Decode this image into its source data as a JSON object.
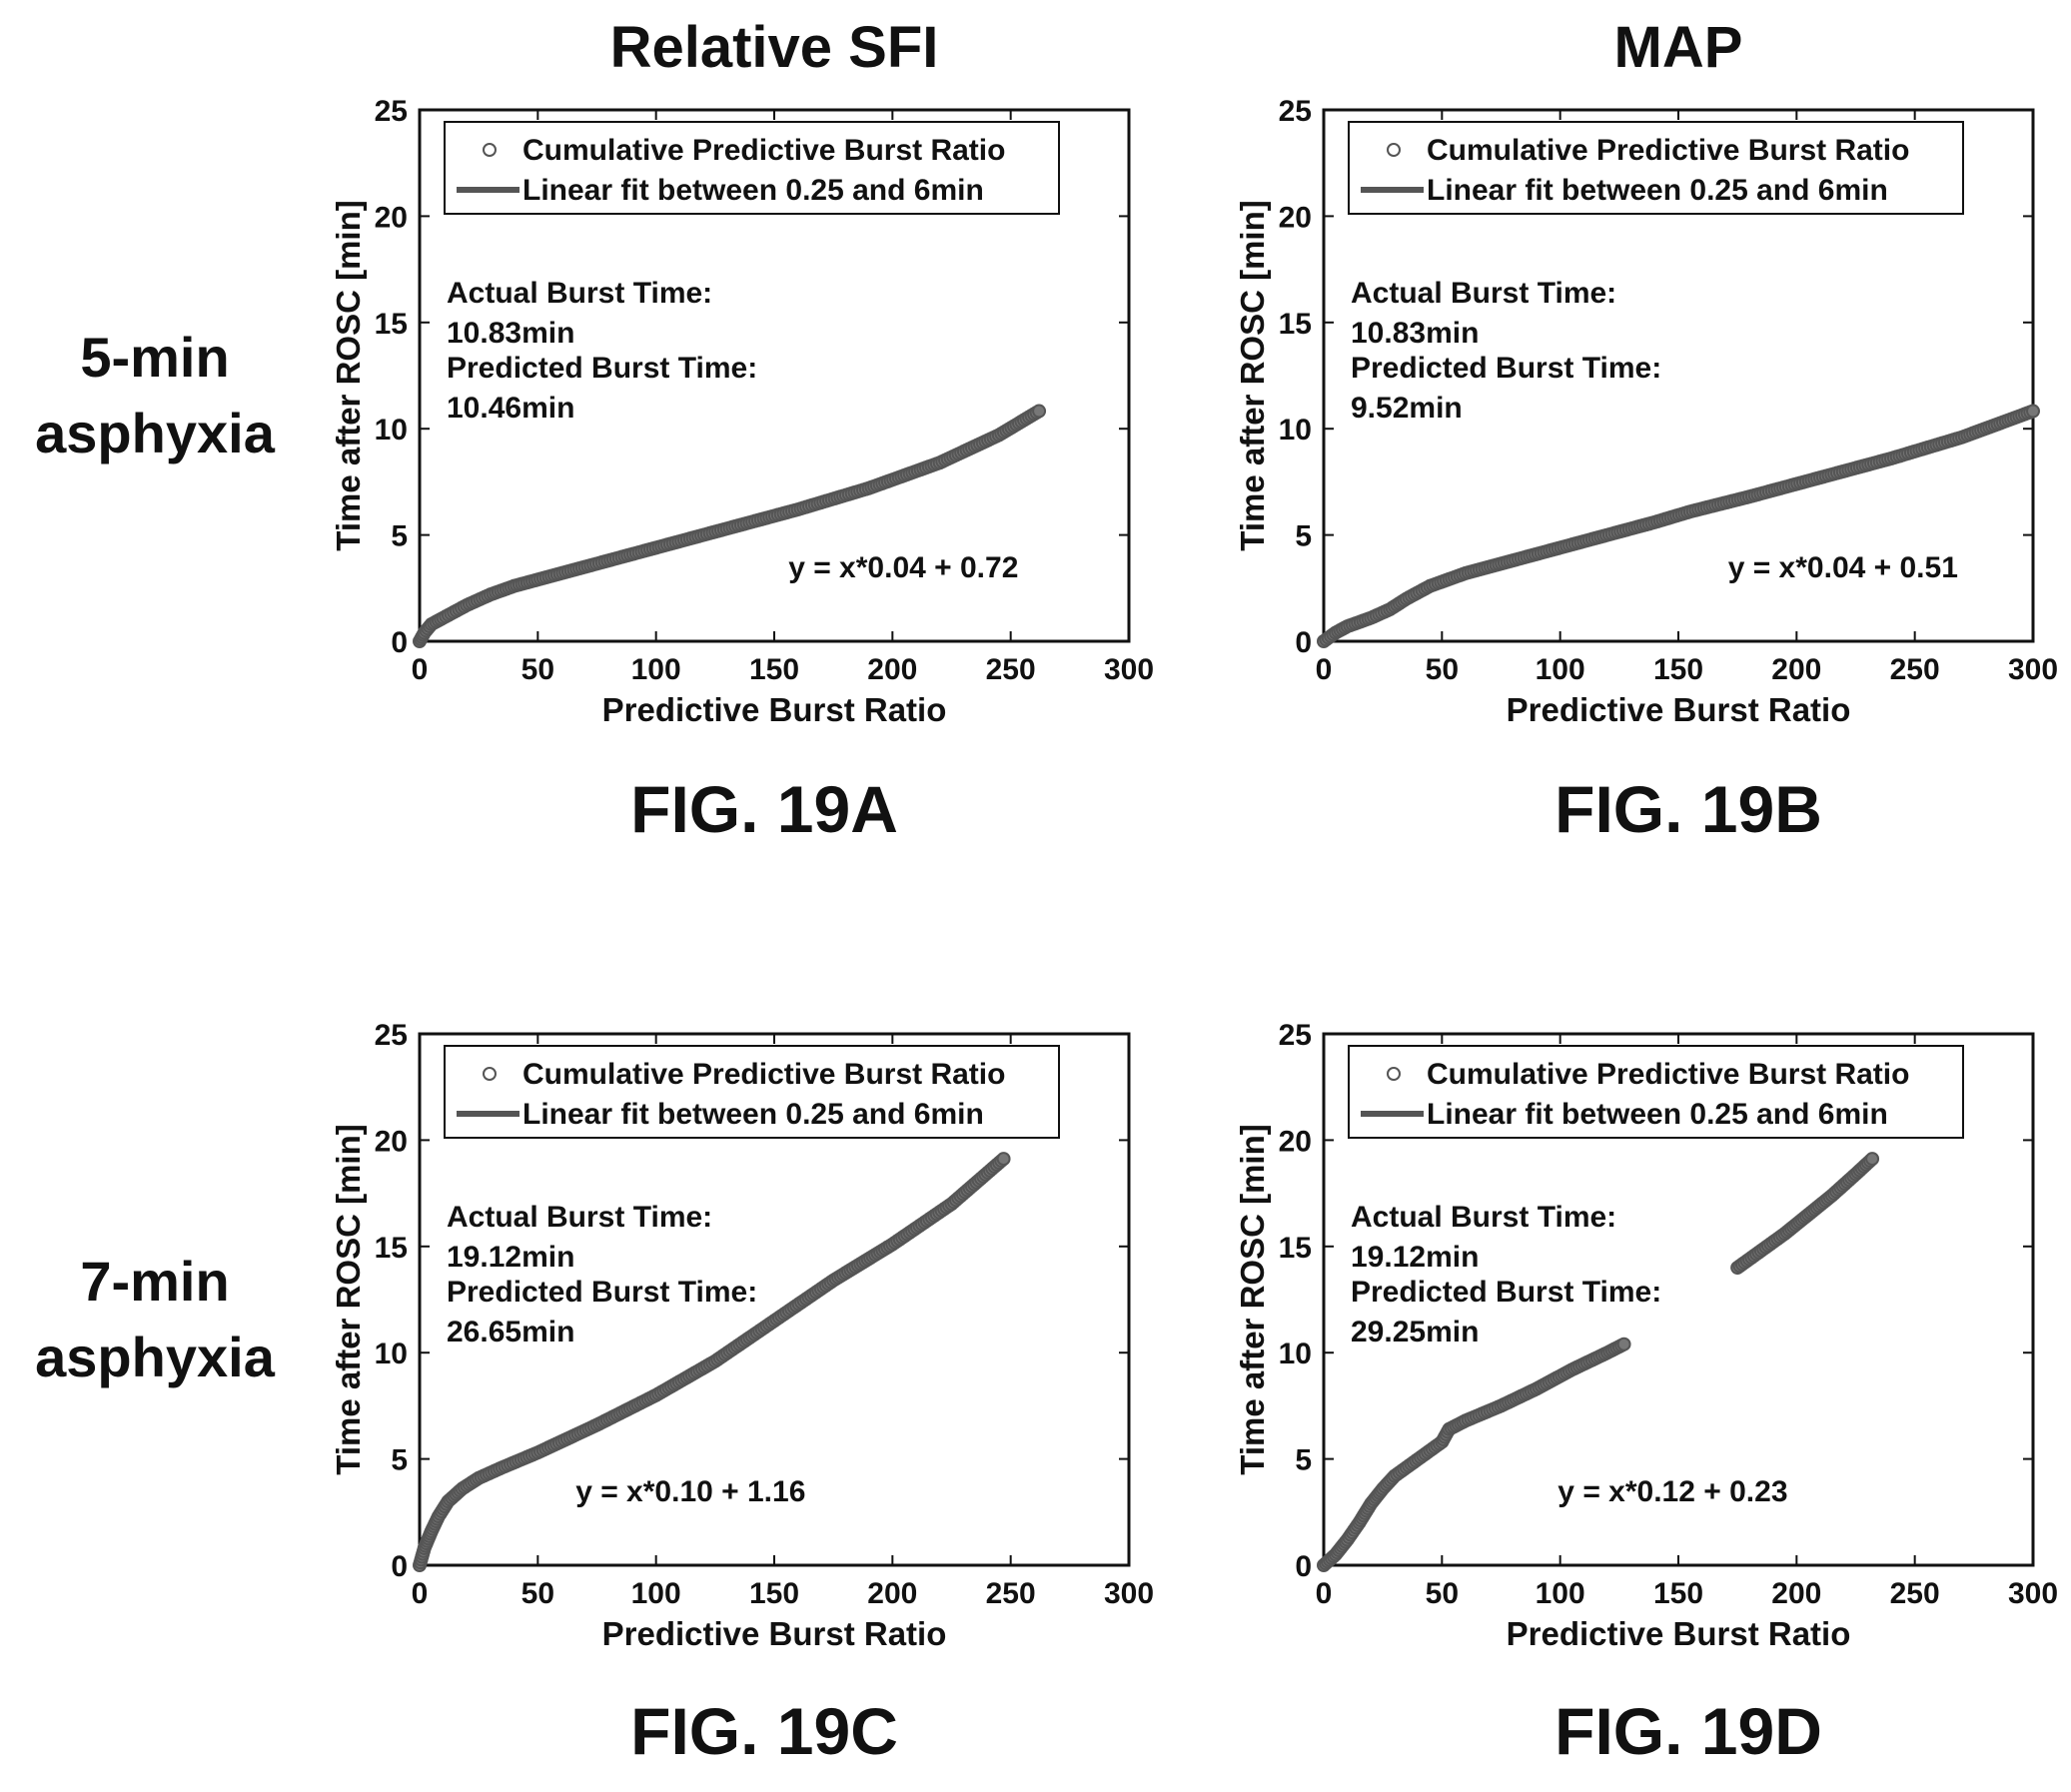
{
  "column_titles": [
    "Relative SFI",
    "MAP"
  ],
  "row_labels": [
    {
      "line1": "5-min",
      "line2": "asphyxia"
    },
    {
      "line1": "7-min",
      "line2": "asphyxia"
    }
  ],
  "chart_data": [
    {
      "type": "scatter",
      "panel": "FIG. 19A",
      "xlabel": "Predictive Burst Ratio",
      "ylabel": "Time after ROSC [min]",
      "xlim": [
        0,
        300
      ],
      "ylim": [
        0,
        25
      ],
      "xticks": [
        0,
        50,
        100,
        150,
        200,
        250,
        300
      ],
      "yticks": [
        0,
        5,
        10,
        15,
        20,
        25
      ],
      "legend": {
        "position": "top",
        "entries": [
          "Cumulative Predictive Burst Ratio",
          "Linear fit between 0.25 and 6min"
        ]
      },
      "annotation": {
        "actual_label": "Actual Burst Time:",
        "actual_value": "10.83min",
        "predicted_label": "Predicted Burst Time:",
        "predicted_value": "10.46min"
      },
      "equation": "y = x*0.04 + 0.72",
      "series": [
        {
          "points": [
            [
              0,
              0
            ],
            [
              2,
              0.4
            ],
            [
              5,
              0.8
            ],
            [
              10,
              1.1
            ],
            [
              20,
              1.7
            ],
            [
              30,
              2.2
            ],
            [
              40,
              2.6
            ],
            [
              50,
              2.9
            ],
            [
              70,
              3.5
            ],
            [
              100,
              4.4
            ],
            [
              130,
              5.3
            ],
            [
              160,
              6.2
            ],
            [
              190,
              7.2
            ],
            [
              220,
              8.4
            ],
            [
              245,
              9.7
            ],
            [
              262,
              10.83
            ]
          ]
        }
      ]
    },
    {
      "type": "scatter",
      "panel": "FIG. 19B",
      "xlabel": "Predictive Burst Ratio",
      "ylabel": "Time after ROSC [min]",
      "xlim": [
        0,
        300
      ],
      "ylim": [
        0,
        25
      ],
      "xticks": [
        0,
        50,
        100,
        150,
        200,
        250,
        300
      ],
      "yticks": [
        0,
        5,
        10,
        15,
        20,
        25
      ],
      "legend": {
        "position": "top",
        "entries": [
          "Cumulative Predictive Burst Ratio",
          "Linear fit between 0.25 and 6min"
        ]
      },
      "annotation": {
        "actual_label": "Actual Burst Time:",
        "actual_value": "10.83min",
        "predicted_label": "Predicted Burst Time:",
        "predicted_value": "9.52min"
      },
      "equation": "y = x*0.04 + 0.51",
      "series": [
        {
          "points": [
            [
              0,
              0
            ],
            [
              5,
              0.4
            ],
            [
              10,
              0.7
            ],
            [
              20,
              1.1
            ],
            [
              28,
              1.5
            ],
            [
              35,
              2.0
            ],
            [
              45,
              2.6
            ],
            [
              60,
              3.2
            ],
            [
              80,
              3.8
            ],
            [
              110,
              4.7
            ],
            [
              140,
              5.6
            ],
            [
              155,
              6.1
            ],
            [
              180,
              6.8
            ],
            [
              210,
              7.7
            ],
            [
              240,
              8.6
            ],
            [
              270,
              9.6
            ],
            [
              300,
              10.83
            ]
          ]
        }
      ]
    },
    {
      "type": "scatter",
      "panel": "FIG. 19C",
      "xlabel": "Predictive Burst Ratio",
      "ylabel": "Time after ROSC [min]",
      "xlim": [
        0,
        300
      ],
      "ylim": [
        0,
        25
      ],
      "xticks": [
        0,
        50,
        100,
        150,
        200,
        250,
        300
      ],
      "yticks": [
        0,
        5,
        10,
        15,
        20,
        25
      ],
      "legend": {
        "position": "top",
        "entries": [
          "Cumulative Predictive Burst Ratio",
          "Linear fit between 0.25 and 6min"
        ]
      },
      "annotation": {
        "actual_label": "Actual Burst Time:",
        "actual_value": "19.12min",
        "predicted_label": "Predicted Burst Time:",
        "predicted_value": "26.65min"
      },
      "equation": "y = x*0.10 + 1.16",
      "series": [
        {
          "points": [
            [
              0,
              0
            ],
            [
              2,
              0.8
            ],
            [
              5,
              1.6
            ],
            [
              8,
              2.3
            ],
            [
              12,
              3.0
            ],
            [
              18,
              3.6
            ],
            [
              25,
              4.1
            ],
            [
              35,
              4.6
            ],
            [
              50,
              5.3
            ],
            [
              75,
              6.6
            ],
            [
              100,
              8.0
            ],
            [
              125,
              9.6
            ],
            [
              150,
              11.5
            ],
            [
              175,
              13.4
            ],
            [
              200,
              15.1
            ],
            [
              225,
              17.0
            ],
            [
              247,
              19.12
            ]
          ]
        }
      ]
    },
    {
      "type": "scatter",
      "panel": "FIG. 19D",
      "xlabel": "Predictive Burst Ratio",
      "ylabel": "Time after ROSC [min]",
      "xlim": [
        0,
        300
      ],
      "ylim": [
        0,
        25
      ],
      "xticks": [
        0,
        50,
        100,
        150,
        200,
        250,
        300
      ],
      "yticks": [
        0,
        5,
        10,
        15,
        20,
        25
      ],
      "legend": {
        "position": "top",
        "entries": [
          "Cumulative Predictive Burst Ratio",
          "Linear fit between 0.25 and 6min"
        ]
      },
      "annotation": {
        "actual_label": "Actual Burst Time:",
        "actual_value": "19.12min",
        "predicted_label": "Predicted Burst Time:",
        "predicted_value": "29.25min"
      },
      "equation": "y = x*0.12 + 0.23",
      "series": [
        {
          "points": [
            [
              0,
              0
            ],
            [
              5,
              0.5
            ],
            [
              10,
              1.2
            ],
            [
              15,
              2.0
            ],
            [
              20,
              2.9
            ],
            [
              25,
              3.6
            ],
            [
              30,
              4.2
            ],
            [
              40,
              5.0
            ],
            [
              50,
              5.8
            ],
            [
              53,
              6.4
            ],
            [
              60,
              6.8
            ],
            [
              75,
              7.5
            ],
            [
              90,
              8.3
            ],
            [
              105,
              9.2
            ],
            [
              120,
              10.0
            ],
            [
              127,
              10.4
            ]
          ]
        },
        {
          "points": [
            [
              175,
              14.0
            ],
            [
              185,
              14.8
            ],
            [
              195,
              15.6
            ],
            [
              205,
              16.5
            ],
            [
              215,
              17.4
            ],
            [
              225,
              18.4
            ],
            [
              232,
              19.12
            ]
          ]
        }
      ]
    }
  ],
  "figure_captions": [
    "FIG. 19A",
    "FIG. 19B",
    "FIG. 19C",
    "FIG. 19D"
  ],
  "colors": {
    "marker": "#555555",
    "axis": "#111111"
  }
}
